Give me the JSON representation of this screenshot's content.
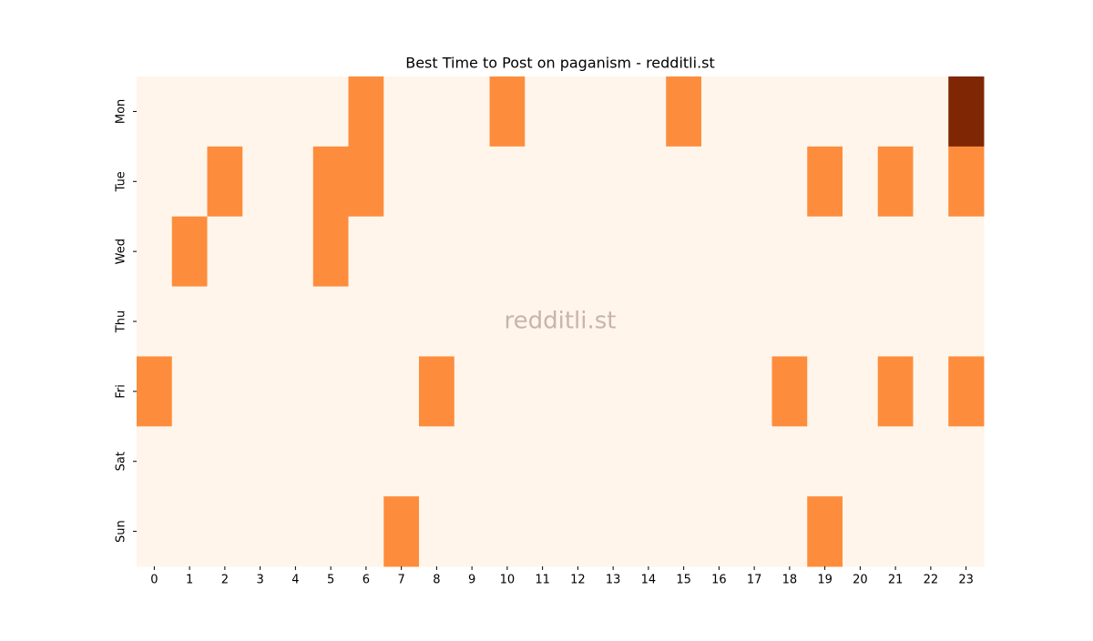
{
  "chart_data": {
    "type": "heatmap",
    "title": "Best Time to Post on paganism - redditli.st",
    "watermark": "redditli.st",
    "x": [
      0,
      1,
      2,
      3,
      4,
      5,
      6,
      7,
      8,
      9,
      10,
      11,
      12,
      13,
      14,
      15,
      16,
      17,
      18,
      19,
      20,
      21,
      22,
      23
    ],
    "y": [
      "Mon",
      "Tue",
      "Wed",
      "Thu",
      "Fri",
      "Sat",
      "Sun"
    ],
    "values": [
      [
        0,
        0,
        0,
        0,
        0,
        0,
        1,
        0,
        0,
        0,
        1,
        0,
        0,
        0,
        0,
        1,
        0,
        0,
        0,
        0,
        0,
        0,
        0,
        2
      ],
      [
        0,
        0,
        1,
        0,
        0,
        1,
        1,
        0,
        0,
        0,
        0,
        0,
        0,
        0,
        0,
        0,
        0,
        0,
        0,
        1,
        0,
        1,
        0,
        1
      ],
      [
        0,
        1,
        0,
        0,
        0,
        1,
        0,
        0,
        0,
        0,
        0,
        0,
        0,
        0,
        0,
        0,
        0,
        0,
        0,
        0,
        0,
        0,
        0,
        0
      ],
      [
        0,
        0,
        0,
        0,
        0,
        0,
        0,
        0,
        0,
        0,
        0,
        0,
        0,
        0,
        0,
        0,
        0,
        0,
        0,
        0,
        0,
        0,
        0,
        0
      ],
      [
        1,
        0,
        0,
        0,
        0,
        0,
        0,
        0,
        1,
        0,
        0,
        0,
        0,
        0,
        0,
        0,
        0,
        0,
        1,
        0,
        0,
        1,
        0,
        1
      ],
      [
        0,
        0,
        0,
        0,
        0,
        0,
        0,
        0,
        0,
        0,
        0,
        0,
        0,
        0,
        0,
        0,
        0,
        0,
        0,
        0,
        0,
        0,
        0,
        0
      ],
      [
        0,
        0,
        0,
        0,
        0,
        0,
        0,
        1,
        0,
        0,
        0,
        0,
        0,
        0,
        0,
        0,
        0,
        0,
        0,
        1,
        0,
        0,
        0,
        0
      ]
    ],
    "color_stops": [
      "#fff5eb",
      "#fd8d3c",
      "#7f2704"
    ]
  }
}
